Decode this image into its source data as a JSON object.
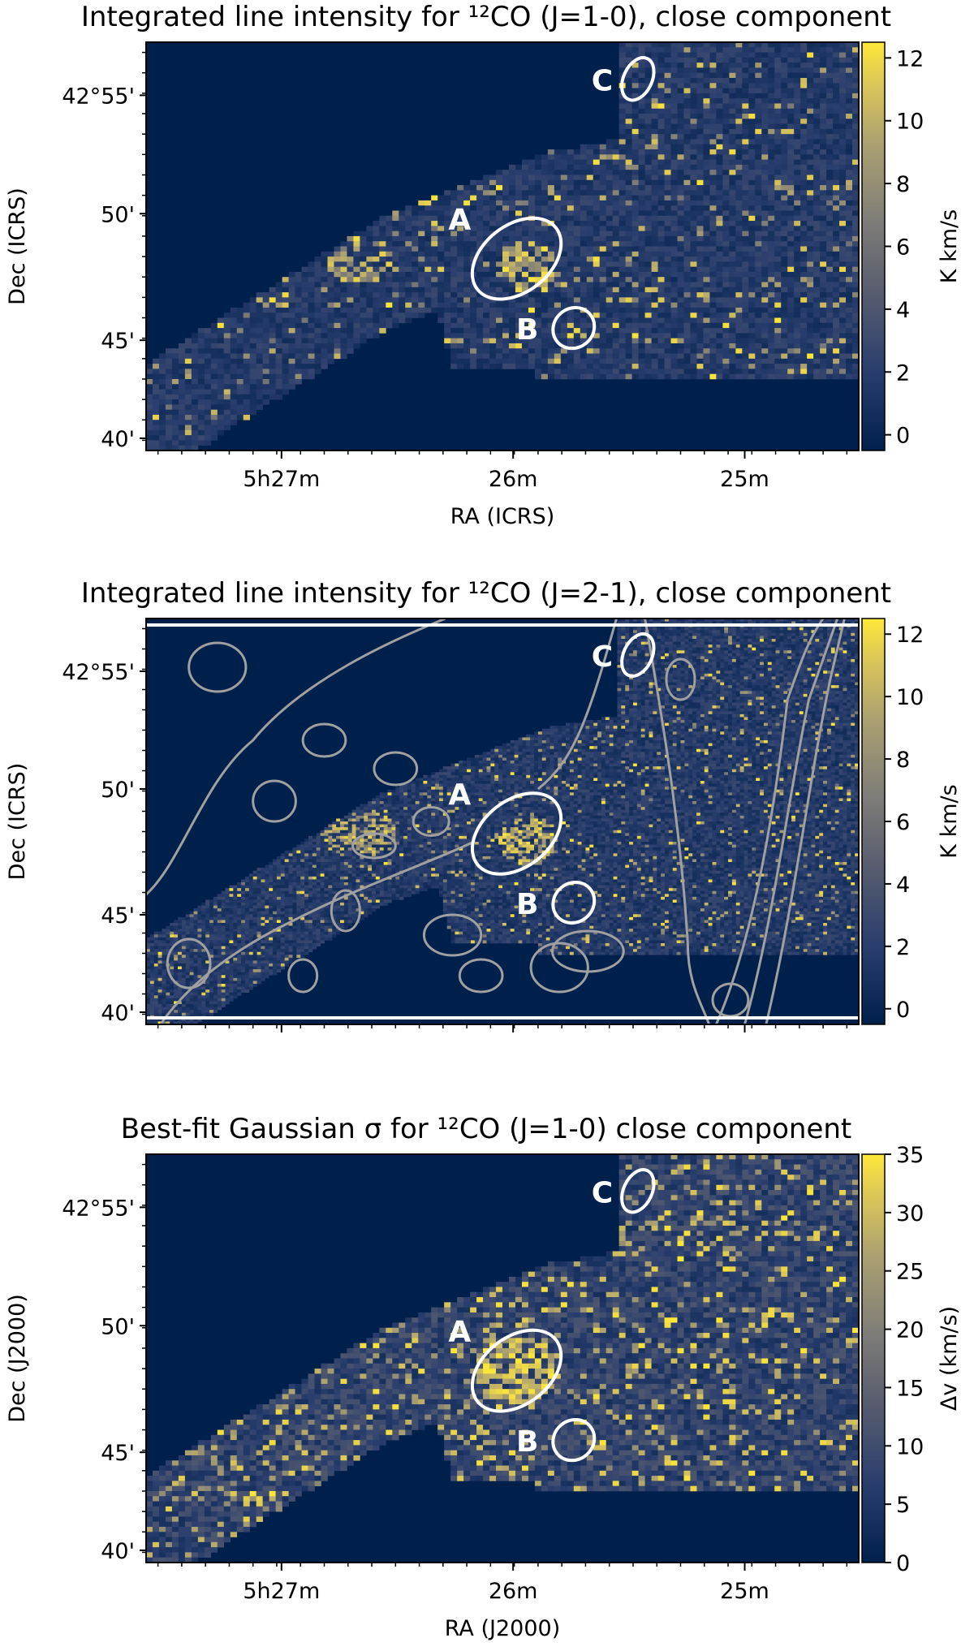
{
  "chart_data": [
    {
      "type": "heatmap",
      "title": "Integrated line intensity for ¹²CO (J=1-0), close component",
      "xlabel": "RA (ICRS)",
      "ylabel": "Dec (ICRS)",
      "x_tick_labels": [
        "5h27m",
        "26m",
        "25m"
      ],
      "y_tick_labels": [
        "42°55'",
        "50'",
        "45'",
        "40'"
      ],
      "colorbar": {
        "label": "K km/s",
        "ticks": [
          0,
          2,
          4,
          6,
          8,
          10,
          12
        ],
        "range": [
          -0.5,
          12.5
        ],
        "cmap": "cividis"
      },
      "regions": [
        "A",
        "B",
        "C"
      ],
      "contours": false,
      "background_color": "#00204c",
      "high_color": "#fee838"
    },
    {
      "type": "heatmap",
      "title": "Integrated line intensity for ¹²CO (J=2-1), close component",
      "xlabel": "",
      "ylabel": "Dec (ICRS)",
      "x_tick_labels": [],
      "y_tick_labels": [
        "42°55'",
        "50'",
        "45'",
        "40'"
      ],
      "colorbar": {
        "label": "K km/s",
        "ticks": [
          0,
          2,
          4,
          6,
          8,
          10,
          12
        ],
        "range": [
          -0.5,
          12.5
        ],
        "cmap": "cividis"
      },
      "regions": [
        "A",
        "B",
        "C"
      ],
      "contours": true,
      "contour_color": "#a0a0a0"
    },
    {
      "type": "heatmap",
      "title": "Best-fit Gaussian σ for ¹²CO (J=1-0) close component",
      "xlabel": "RA (J2000)",
      "ylabel": "Dec (J2000)",
      "x_tick_labels": [
        "5h27m",
        "26m",
        "25m"
      ],
      "y_tick_labels": [
        "42°55'",
        "50'",
        "45'",
        "40'"
      ],
      "colorbar": {
        "label": "Δv (km/s)",
        "ticks": [
          0,
          5,
          10,
          15,
          20,
          25,
          30,
          35
        ],
        "range": [
          0,
          35
        ],
        "cmap": "cividis"
      },
      "regions": [
        "A",
        "B",
        "C"
      ],
      "contours": false
    }
  ]
}
